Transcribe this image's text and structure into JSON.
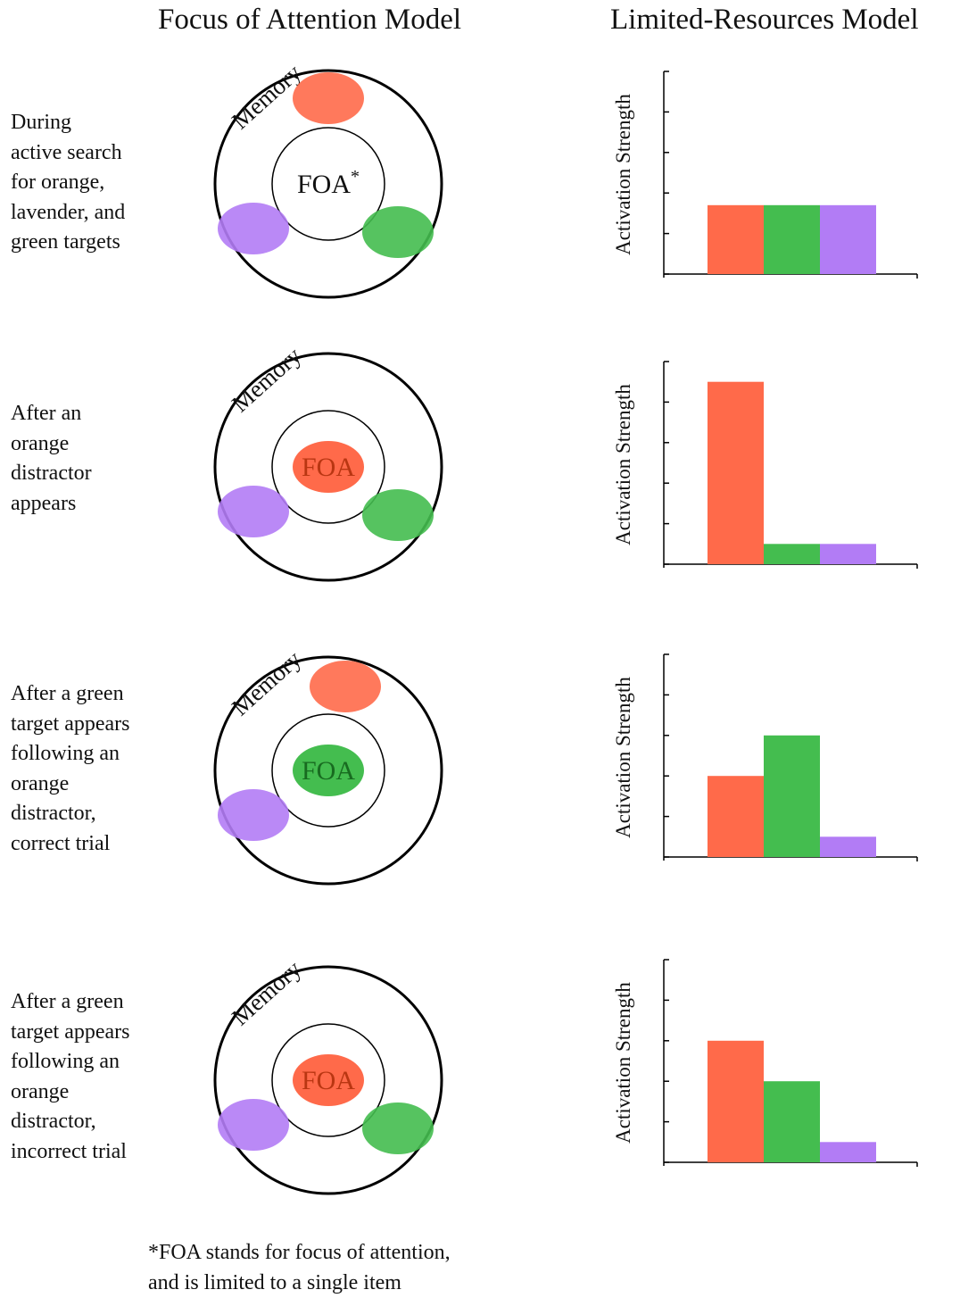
{
  "titles": {
    "left": "Focus of Attention Model",
    "right": "Limited-Resources Model"
  },
  "colors": {
    "orange": "#ff6a4a",
    "green": "#44bd4f",
    "lavender": "#b27cf5"
  },
  "rows": [
    {
      "label_lines": [
        "During",
        "active search",
        "for orange,",
        "lavender, and",
        "green targets"
      ],
      "diagram": {
        "memory_label": "Memory",
        "foa_label": "FOA",
        "foa_superscript": "*",
        "foa_fill": "none",
        "memory_items": [
          "orange",
          "lavender",
          "green"
        ]
      }
    },
    {
      "label_lines": [
        "After an",
        "orange",
        "distractor",
        "appears"
      ],
      "diagram": {
        "memory_label": "Memory",
        "foa_label": "FOA",
        "foa_superscript": "",
        "foa_fill": "orange",
        "memory_items": [
          "lavender",
          "green"
        ]
      }
    },
    {
      "label_lines": [
        "After a green",
        "target appears",
        "following an",
        "orange",
        "distractor,",
        "correct trial"
      ],
      "diagram": {
        "memory_label": "Memory",
        "foa_label": "FOA",
        "foa_superscript": "",
        "foa_fill": "green",
        "memory_items": [
          "orange",
          "lavender"
        ]
      }
    },
    {
      "label_lines": [
        "After a green",
        "target appears",
        "following an",
        "orange",
        "distractor,",
        "incorrect trial"
      ],
      "diagram": {
        "memory_label": "Memory",
        "foa_label": "FOA",
        "foa_superscript": "",
        "foa_fill": "orange",
        "memory_items": [
          "lavender",
          "green"
        ]
      }
    }
  ],
  "chart_data": [
    {
      "type": "bar",
      "ylabel": "Activation Strength",
      "ylim": [
        0,
        5
      ],
      "categories": [
        "orange",
        "green",
        "lavender"
      ],
      "values": [
        1.7,
        1.7,
        1.7
      ],
      "colors": [
        "#ff6a4a",
        "#44bd4f",
        "#b27cf5"
      ]
    },
    {
      "type": "bar",
      "ylabel": "Activation Strength",
      "ylim": [
        0,
        5
      ],
      "categories": [
        "orange",
        "green",
        "lavender"
      ],
      "values": [
        4.5,
        0.5,
        0.5
      ],
      "colors": [
        "#ff6a4a",
        "#44bd4f",
        "#b27cf5"
      ]
    },
    {
      "type": "bar",
      "ylabel": "Activation Strength",
      "ylim": [
        0,
        5
      ],
      "categories": [
        "orange",
        "green",
        "lavender"
      ],
      "values": [
        2.0,
        3.0,
        0.5
      ],
      "colors": [
        "#ff6a4a",
        "#44bd4f",
        "#b27cf5"
      ]
    },
    {
      "type": "bar",
      "ylabel": "Activation Strength",
      "ylim": [
        0,
        5
      ],
      "categories": [
        "orange",
        "green",
        "lavender"
      ],
      "values": [
        3.0,
        2.0,
        0.5
      ],
      "colors": [
        "#ff6a4a",
        "#44bd4f",
        "#b27cf5"
      ]
    }
  ],
  "footnote_lines": [
    "*FOA stands for focus of attention,",
    "and is limited to a single item"
  ]
}
